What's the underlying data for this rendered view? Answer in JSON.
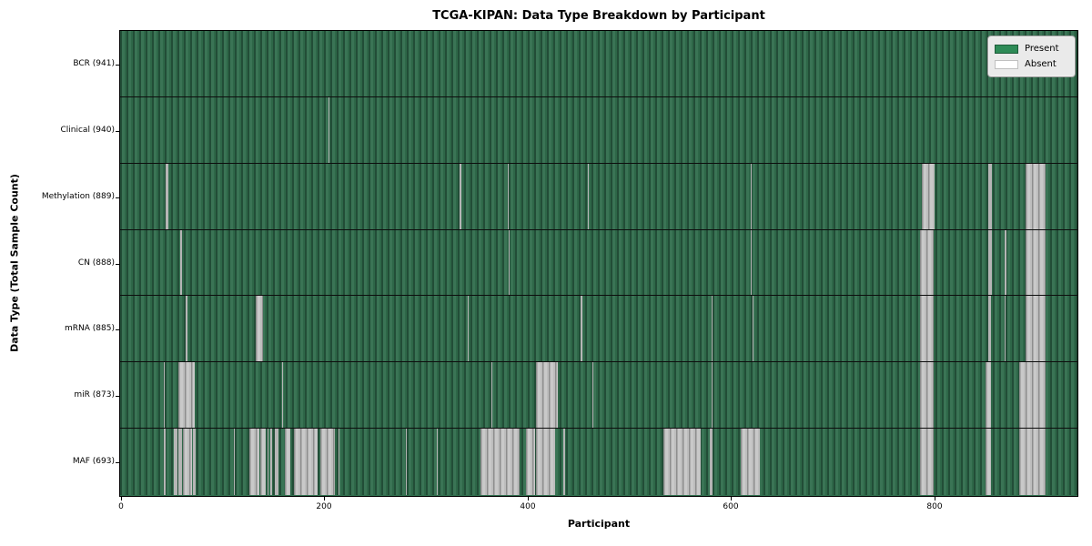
{
  "title": "TCGA-KIPAN: Data Type Breakdown by Participant",
  "legend": {
    "items": [
      {
        "label": "Present",
        "color": "#2e8b57"
      },
      {
        "label": "Absent",
        "color": "#ffffff"
      }
    ]
  },
  "colors": {
    "present_fill": "#2e8b57",
    "present_dark_edge": "#224d37",
    "absent_fill": "#ffffff",
    "absent_rendered_gray": "#b5b5b5",
    "frame": "#000000"
  },
  "chart_data": {
    "type": "heatmap",
    "title": "TCGA-KIPAN: Data Type Breakdown by Participant",
    "xlabel": "Participant",
    "ylabel": "Data Type (Total Sample Count)",
    "x_range": [
      0,
      941
    ],
    "x_ticks": [
      0,
      200,
      400,
      600,
      800
    ],
    "legend_position": "upper right",
    "value_encoding": {
      "present": "green",
      "absent": "white"
    },
    "rows": [
      {
        "label": "BCR (941)",
        "name": "BCR",
        "total": 941,
        "absent_segments": []
      },
      {
        "label": "Clinical (940)",
        "name": "Clinical",
        "total": 940,
        "absent_segments": [
          [
            205,
            206
          ]
        ]
      },
      {
        "label": "Methylation (889)",
        "name": "Methylation",
        "total": 889,
        "absent_segments": [
          [
            45,
            47
          ],
          [
            334,
            335
          ],
          [
            381,
            382
          ],
          [
            460,
            461
          ],
          [
            620,
            621
          ],
          [
            788,
            801
          ],
          [
            853,
            857
          ],
          [
            890,
            910
          ]
        ]
      },
      {
        "label": "CN (888)",
        "name": "CN",
        "total": 888,
        "absent_segments": [
          [
            59,
            61
          ],
          [
            382,
            383
          ],
          [
            620,
            621
          ],
          [
            786,
            800
          ],
          [
            853,
            857
          ],
          [
            869,
            871
          ],
          [
            890,
            910
          ]
        ]
      },
      {
        "label": "mRNA (885)",
        "name": "mRNA",
        "total": 885,
        "absent_segments": [
          [
            64,
            66
          ],
          [
            133,
            140
          ],
          [
            342,
            343
          ],
          [
            453,
            454
          ],
          [
            581,
            582
          ],
          [
            622,
            623
          ],
          [
            786,
            800
          ],
          [
            853,
            856
          ],
          [
            869,
            870
          ],
          [
            890,
            910
          ]
        ]
      },
      {
        "label": "miR (873)",
        "name": "miR",
        "total": 873,
        "absent_segments": [
          [
            43,
            44
          ],
          [
            57,
            73
          ],
          [
            159,
            160
          ],
          [
            365,
            366
          ],
          [
            409,
            430
          ],
          [
            464,
            465
          ],
          [
            581,
            582
          ],
          [
            786,
            800
          ],
          [
            851,
            856
          ],
          [
            884,
            910
          ]
        ]
      },
      {
        "label": "MAF (693)",
        "name": "MAF",
        "total": 693,
        "absent_segments": [
          [
            43,
            45
          ],
          [
            53,
            56
          ],
          [
            57,
            61
          ],
          [
            62,
            71
          ],
          [
            72,
            74
          ],
          [
            112,
            113
          ],
          [
            127,
            137
          ],
          [
            138,
            143
          ],
          [
            145,
            146
          ],
          [
            148,
            149
          ],
          [
            152,
            156
          ],
          [
            162,
            167
          ],
          [
            171,
            194
          ],
          [
            197,
            211
          ],
          [
            215,
            216
          ],
          [
            281,
            282
          ],
          [
            311,
            312
          ],
          [
            354,
            393
          ],
          [
            399,
            408
          ],
          [
            409,
            428
          ],
          [
            436,
            437
          ],
          [
            534,
            571
          ],
          [
            580,
            582
          ],
          [
            610,
            629
          ],
          [
            786,
            800
          ],
          [
            851,
            856
          ],
          [
            884,
            910
          ]
        ]
      }
    ]
  }
}
